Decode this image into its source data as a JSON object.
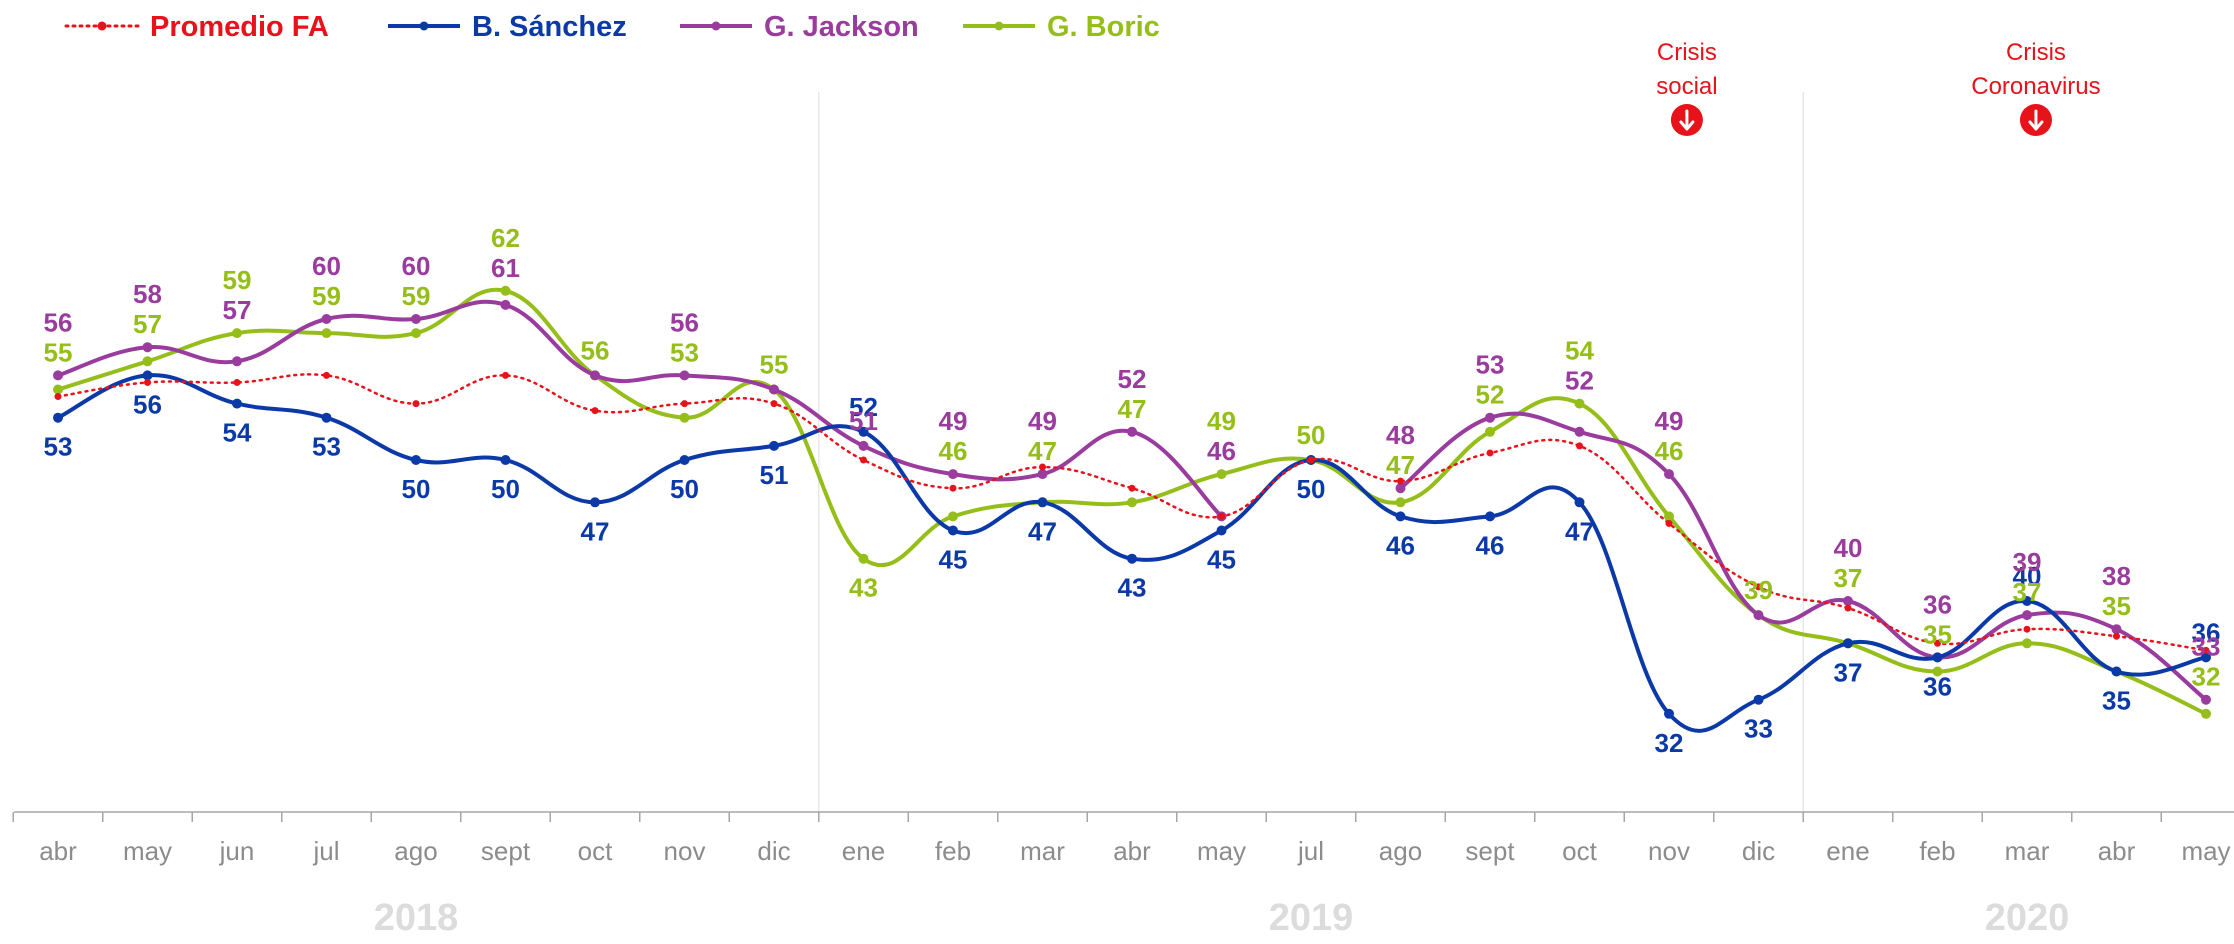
{
  "chart_data": {
    "type": "line",
    "categories": [
      "abr",
      "may",
      "jun",
      "jul",
      "ago",
      "sept",
      "oct",
      "nov",
      "dic",
      "ene",
      "feb",
      "mar",
      "abr",
      "may",
      "jul",
      "ago",
      "sept",
      "oct",
      "nov",
      "dic",
      "ene",
      "feb",
      "mar",
      "abr",
      "may"
    ],
    "years": [
      {
        "label": "2018",
        "start": 0,
        "end": 8
      },
      {
        "label": "2019",
        "start": 9,
        "end": 19
      },
      {
        "label": "2020",
        "start": 20,
        "end": 24
      }
    ],
    "ylim": [
      28,
      68
    ],
    "legend_position": "top-left",
    "series": [
      {
        "name": "Promedio FA",
        "color": "#e8121a",
        "style": "dotted",
        "values": [
          54.5,
          55.5,
          55.5,
          56,
          54,
          56,
          53.5,
          54,
          54,
          50,
          48,
          49.5,
          48,
          46,
          50,
          48.5,
          50.5,
          51,
          45.5,
          41,
          39.5,
          37,
          38,
          37.5,
          36.5
        ],
        "labels": [
          null,
          null,
          null,
          null,
          null,
          null,
          null,
          null,
          null,
          null,
          null,
          null,
          null,
          null,
          null,
          null,
          null,
          null,
          null,
          null,
          null,
          null,
          null,
          null,
          null
        ]
      },
      {
        "name": "B. Sánchez",
        "color": "#0b3aa8",
        "style": "solid",
        "values": [
          53,
          56,
          54,
          53,
          50,
          50,
          47,
          50,
          51,
          52,
          45,
          47,
          43,
          45,
          50,
          46,
          46,
          47,
          32,
          33,
          37,
          36,
          40,
          35,
          36
        ],
        "labels": [
          "53",
          "56",
          "54",
          "53",
          "50",
          "50",
          "47",
          "50",
          "51",
          "52",
          "45",
          "47",
          "43",
          "45",
          "50",
          "46",
          "46",
          "47",
          "32",
          "33",
          "37",
          "36",
          "40",
          "35",
          "36"
        ]
      },
      {
        "name": "G. Jackson",
        "color": "#9a3b9e",
        "style": "solid",
        "values": [
          56,
          58,
          57,
          60,
          60,
          61,
          56,
          56,
          55,
          51,
          49,
          49,
          52,
          46,
          null,
          48,
          53,
          52,
          49,
          39,
          40,
          36,
          39,
          38,
          33
        ],
        "labels": [
          "56",
          "58",
          "57",
          "60",
          "60",
          "61",
          null,
          "56",
          null,
          "51",
          "49",
          "49",
          "52",
          "46",
          null,
          "48",
          "53",
          "52",
          "49",
          null,
          "40",
          "36",
          "39",
          "38",
          "33"
        ]
      },
      {
        "name": "G. Boric",
        "color": "#95be1a",
        "style": "solid",
        "values": [
          55,
          57,
          59,
          59,
          59,
          62,
          56,
          53,
          55,
          43,
          46,
          47,
          47,
          49,
          50,
          47,
          52,
          54,
          46,
          39,
          37,
          35,
          37,
          35,
          32
        ],
        "labels": [
          "55",
          "57",
          "59",
          "59",
          "59",
          "62",
          "56",
          "53",
          "55",
          "43",
          "46",
          "47",
          "47",
          "49",
          "50",
          "47",
          "52",
          "54",
          "46",
          "39",
          "37",
          "35",
          "37",
          "35",
          "32"
        ]
      }
    ],
    "annotations": [
      {
        "lines": [
          "Crisis",
          "social"
        ],
        "index": 18.2
      },
      {
        "lines": [
          "Crisis",
          "Coronavirus"
        ],
        "index": 22.1
      }
    ]
  }
}
